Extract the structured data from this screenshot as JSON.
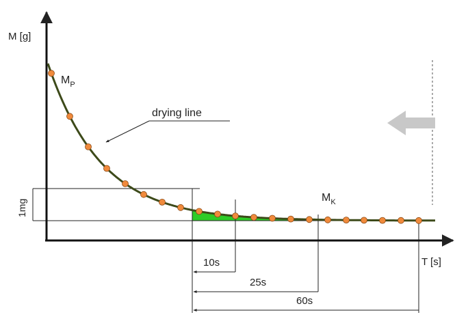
{
  "labels": {
    "y_axis": "M [g]",
    "x_axis": "T [s]",
    "curve": "drying line",
    "start_mass_main": "M",
    "start_mass_sub": "P",
    "end_mass_main": "M",
    "end_mass_sub": "K",
    "band": "1mg",
    "interval_short": "10s",
    "interval_mid": "25s",
    "interval_long": "60s"
  },
  "colors": {
    "curve": "#3d4a1a",
    "points": "#f08a3c",
    "shaded_area": "#2ecc27",
    "arrow": "#c8c8c8",
    "lines": "#222222"
  },
  "icons": {
    "direction_arrow": "left-arrow-icon"
  }
}
